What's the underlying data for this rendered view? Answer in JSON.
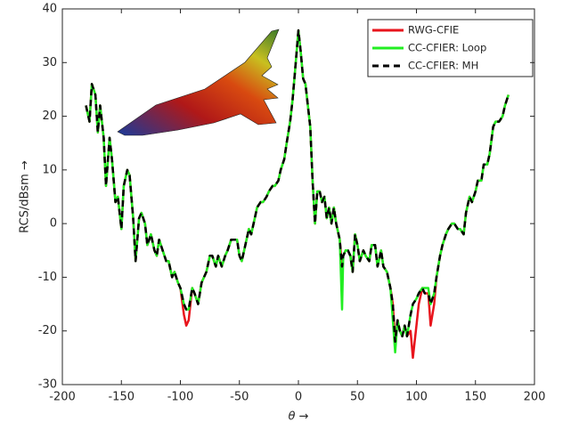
{
  "chart_data": {
    "type": "line",
    "xlabel": "θ →",
    "ylabel": "RCS/dBsm →",
    "x": [
      -180,
      -177,
      -175,
      -172,
      -170,
      -168,
      -165,
      -163,
      -160,
      -158,
      -155,
      -153,
      -150,
      -148,
      -145,
      -143,
      -140,
      -138,
      -135,
      -133,
      -130,
      -128,
      -125,
      -122,
      -120,
      -118,
      -115,
      -112,
      -110,
      -107,
      -105,
      -102,
      -100,
      -97,
      -95,
      -93,
      -90,
      -88,
      -85,
      -82,
      -80,
      -78,
      -75,
      -73,
      -70,
      -68,
      -65,
      -62,
      -60,
      -57,
      -55,
      -52,
      -50,
      -48,
      -45,
      -42,
      -40,
      -37,
      -35,
      -32,
      -30,
      -27,
      -25,
      -22,
      -20,
      -17,
      -15,
      -12,
      -10,
      -7,
      -5,
      -3,
      0,
      2,
      4,
      6,
      8,
      10,
      12,
      14,
      16,
      18,
      20,
      22,
      24,
      26,
      28,
      30,
      32,
      35,
      37,
      38,
      40,
      42,
      44,
      46,
      48,
      50,
      52,
      55,
      57,
      60,
      62,
      65,
      67,
      70,
      72,
      75,
      78,
      80,
      82,
      84,
      86,
      88,
      90,
      92,
      95,
      97,
      100,
      102,
      105,
      107,
      110,
      112,
      115,
      117,
      120,
      122,
      125,
      127,
      130,
      132,
      135,
      137,
      140,
      142,
      145,
      147,
      150,
      152,
      155,
      157,
      160,
      162,
      165,
      167,
      170,
      173,
      175,
      178
    ],
    "series": [
      {
        "name": "RWG-CFIE",
        "color": "#e8141c",
        "linestyle": "solid",
        "values": [
          22,
          19,
          26,
          24,
          17,
          22,
          16,
          7,
          16,
          12,
          4,
          5,
          -1,
          7,
          10,
          9,
          1,
          -7,
          1,
          2,
          0,
          -4,
          -2,
          -5,
          -6,
          -3,
          -5,
          -7,
          -7,
          -10,
          -9,
          -11,
          -12,
          -17,
          -19,
          -18,
          -12,
          -13,
          -15,
          -11,
          -10,
          -9,
          -6,
          -6,
          -8,
          -6,
          -8,
          -6,
          -5,
          -3,
          -3,
          -3,
          -6,
          -7,
          -4,
          -1,
          -2,
          1,
          3,
          4,
          4,
          5,
          6,
          7,
          7,
          8,
          10,
          12,
          15,
          19,
          23,
          28,
          36,
          32,
          27,
          26,
          22,
          18,
          8,
          0,
          6,
          6,
          4,
          5,
          1,
          3,
          0,
          3,
          0,
          -3,
          -8,
          -6,
          -5,
          -5,
          -6,
          -9,
          -2,
          -4,
          -7,
          -5,
          -6,
          -7,
          -4,
          -4,
          -8,
          -5,
          -8,
          -9,
          -12,
          -15,
          -22,
          -18,
          -20,
          -21,
          -19,
          -21,
          -20,
          -25,
          -19,
          -15,
          -12,
          -13,
          -13,
          -19,
          -15,
          -10,
          -6,
          -4,
          -2,
          -1,
          0,
          0,
          -1,
          -1,
          -2,
          2,
          5,
          4,
          6,
          8,
          8,
          11,
          11,
          13,
          18,
          19,
          19,
          20,
          22,
          24
        ]
      },
      {
        "name": "CC-CFIER: Loop",
        "color": "#22ee22",
        "linestyle": "solid",
        "values": [
          22,
          19,
          26,
          24,
          17,
          22,
          16,
          7,
          16,
          12,
          4,
          5,
          -1,
          7,
          10,
          9,
          1,
          -7,
          1,
          2,
          0,
          -4,
          -2,
          -5,
          -6,
          -3,
          -5,
          -7,
          -7,
          -10,
          -9,
          -11,
          -12,
          -15,
          -16,
          -16,
          -12,
          -13,
          -15,
          -11,
          -10,
          -9,
          -6,
          -6,
          -8,
          -6,
          -8,
          -6,
          -5,
          -3,
          -3,
          -3,
          -6,
          -7,
          -4,
          -1,
          -2,
          1,
          3,
          4,
          4,
          5,
          6,
          7,
          7,
          8,
          10,
          12,
          15,
          19,
          23,
          28,
          36,
          32,
          27,
          26,
          22,
          18,
          8,
          0,
          6,
          6,
          4,
          5,
          1,
          3,
          0,
          3,
          0,
          -3,
          -16,
          -6,
          -5,
          -5,
          -6,
          -9,
          -2,
          -4,
          -7,
          -5,
          -6,
          -7,
          -4,
          -4,
          -8,
          -5,
          -8,
          -9,
          -12,
          -18,
          -24,
          -18,
          -20,
          -21,
          -19,
          -21,
          -17,
          -15,
          -14,
          -13,
          -12,
          -12,
          -12,
          -15,
          -13,
          -10,
          -6,
          -4,
          -2,
          -1,
          0,
          0,
          -1,
          -1,
          -2,
          2,
          5,
          4,
          6,
          8,
          8,
          11,
          11,
          13,
          18,
          19,
          19,
          20,
          22,
          24
        ]
      },
      {
        "name": "CC-CFIER: MH",
        "color": "#000000",
        "linestyle": "dashed",
        "values": [
          22,
          19,
          26,
          24,
          17,
          22,
          16,
          7,
          16,
          12,
          4,
          5,
          -1,
          7,
          10,
          9,
          1,
          -7,
          1,
          2,
          0,
          -4,
          -2,
          -5,
          -6,
          -3,
          -5,
          -7,
          -7,
          -10,
          -9,
          -11,
          -12,
          -15,
          -16,
          -16,
          -12,
          -13,
          -15,
          -11,
          -10,
          -9,
          -6,
          -6,
          -8,
          -6,
          -8,
          -6,
          -5,
          -3,
          -3,
          -3,
          -6,
          -7,
          -4,
          -1,
          -2,
          1,
          3,
          4,
          4,
          5,
          6,
          7,
          7,
          8,
          10,
          12,
          15,
          19,
          23,
          28,
          36,
          32,
          27,
          26,
          22,
          18,
          8,
          0,
          6,
          6,
          4,
          5,
          1,
          3,
          0,
          3,
          0,
          -3,
          -8,
          -6,
          -5,
          -5,
          -6,
          -9,
          -2,
          -4,
          -7,
          -5,
          -6,
          -7,
          -4,
          -4,
          -8,
          -5,
          -8,
          -9,
          -12,
          -15,
          -22,
          -18,
          -20,
          -21,
          -19,
          -21,
          -17,
          -15,
          -14,
          -13,
          -12,
          -13,
          -13,
          -15,
          -13,
          -10,
          -6,
          -4,
          -2,
          -1,
          0,
          0,
          -1,
          -1,
          -2,
          2,
          5,
          4,
          6,
          8,
          8,
          11,
          11,
          13,
          18,
          19,
          19,
          20,
          22,
          24
        ]
      }
    ],
    "xlim": [
      -200,
      200
    ],
    "xticks": [
      -200,
      -150,
      -100,
      -50,
      0,
      50,
      100,
      150,
      200
    ],
    "ylim": [
      -30,
      40
    ],
    "yticks": [
      -30,
      -20,
      -10,
      0,
      10,
      20,
      30,
      40
    ],
    "legend": "upper-right"
  }
}
